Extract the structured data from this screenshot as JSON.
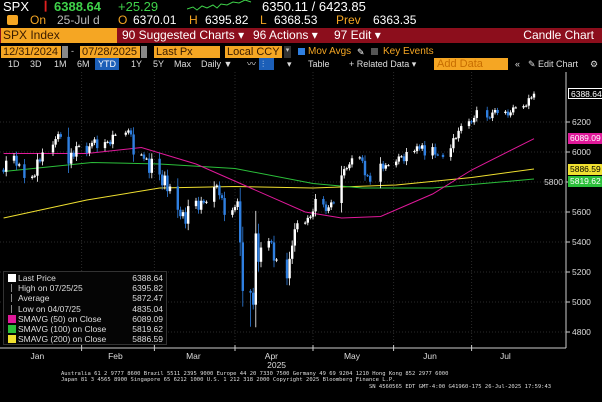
{
  "ticker": {
    "symbol": "SPX",
    "last": "6388.64",
    "change": "+25.29",
    "range": "6350.11 / 6423.85",
    "on_label": "On",
    "date": "25-Jul d",
    "o_label": "O",
    "open": "6370.01",
    "h_label": "H",
    "high": "6395.82",
    "l_label": "L",
    "low": "6368.53",
    "prev_label": "Prev",
    "prev": "6363.35"
  },
  "menubar": {
    "security": "SPX Index",
    "suggested": "90 Suggested Charts ▾",
    "actions": "96 Actions ▾",
    "edit": "97 Edit ▾",
    "chart_type": "Candle Chart"
  },
  "controls": {
    "start_date": "12/31/2024",
    "end_date": "07/28/2025",
    "field": "Last Px",
    "currency": "Local CCY",
    "mov_avgs": "Mov Avgs",
    "key_events": "Key Events",
    "mov_avgs_checked": true,
    "key_events_checked": false
  },
  "periods": {
    "items": [
      "1D",
      "3D",
      "1M",
      "6M",
      "YTD",
      "1Y",
      "5Y",
      "Max"
    ],
    "active": "YTD",
    "frequency": "Daily ▼",
    "table": "Table",
    "related": "+ Related Data ▾",
    "add_data_placeholder": "Add Data",
    "collapse": "«",
    "edit_chart": "Edit Chart"
  },
  "legend": [
    {
      "label": "Last Price",
      "value": "6388.64",
      "color": "#ffffff"
    },
    {
      "label": "High on 07/25/25",
      "value": "6395.82"
    },
    {
      "label": "Average",
      "value": "5872.47"
    },
    {
      "label": "Low on 04/07/25",
      "value": "4835.04"
    },
    {
      "label": "SMAVG (50)  on Close",
      "value": "6089.09",
      "color": "#e0199a"
    },
    {
      "label": "SMAVG (100)  on Close",
      "value": "5819.62",
      "color": "#2bbf3a"
    },
    {
      "label": "SMAVG (200)  on Close",
      "value": "5886.59",
      "color": "#f0e030"
    }
  ],
  "footer": {
    "line1": "Australia 61 2 9777 8600 Brazil 5511 2395 9000 Europe 44 20 7330 7500 Germany 49 69 9204 1210 Hong Kong 852 2977 6000",
    "line2": "Japan 81 3 4565 8900       Singapore 65 6212 1000       U.S. 1 212 318 2000        Copyright 2025 Bloomberg Finance L.P.",
    "line3": "SN 4560565 EDT  GMT-4:00 G41960-175 26-Jul-2025 17:59:43"
  },
  "chart_data": {
    "type": "candlestick",
    "xlabel": "2025",
    "x_ticks": [
      "Jan",
      "Feb",
      "Mar",
      "Apr",
      "May",
      "Jun",
      "Jul"
    ],
    "y_ticks": [
      4800,
      5000,
      5200,
      5400,
      5600,
      5800,
      6000,
      6200
    ],
    "ylim": [
      4700,
      6450
    ],
    "xlim": [
      "2024-12-31",
      "2025-07-28"
    ],
    "grid": true,
    "legend_placement": "bottom-left",
    "colors": {
      "up": "#ffffff",
      "down": "#2f7fe0",
      "sma50": "#e0199a",
      "sma100": "#2bbf3a",
      "sma200": "#f0e030"
    },
    "price_tags": [
      {
        "value": 6388.64,
        "label": "6388.64",
        "color": "#ffffff"
      },
      {
        "value": 6089.09,
        "label": "6089.09",
        "color": "#e0199a"
      },
      {
        "value": 5886.59,
        "label": "5886.59",
        "color": "#f0e030"
      },
      {
        "value": 5819.62,
        "label": "5819.62",
        "color": "#2bbf3a"
      }
    ],
    "low_point": {
      "date": "2025-04-07",
      "value": 4835.04
    },
    "closes": [
      [
        "2024-12-31",
        5882
      ],
      [
        "2025-01-02",
        5868
      ],
      [
        "2025-01-03",
        5942
      ],
      [
        "2025-01-06",
        5975
      ],
      [
        "2025-01-07",
        5909
      ],
      [
        "2025-01-08",
        5918
      ],
      [
        "2025-01-10",
        5827
      ],
      [
        "2025-01-13",
        5836
      ],
      [
        "2025-01-14",
        5842
      ],
      [
        "2025-01-15",
        5950
      ],
      [
        "2025-01-16",
        5937
      ],
      [
        "2025-01-17",
        5997
      ],
      [
        "2025-01-21",
        6049
      ],
      [
        "2025-01-22",
        6086
      ],
      [
        "2025-01-23",
        6119
      ],
      [
        "2025-01-24",
        6101
      ],
      [
        "2025-01-27",
        5922
      ],
      [
        "2025-01-28",
        5995
      ],
      [
        "2025-01-29",
        5969
      ],
      [
        "2025-01-30",
        6039
      ],
      [
        "2025-01-31",
        6041
      ],
      [
        "2025-02-03",
        5994
      ],
      [
        "2025-02-04",
        6038
      ],
      [
        "2025-02-05",
        6061
      ],
      [
        "2025-02-06",
        6084
      ],
      [
        "2025-02-07",
        6026
      ],
      [
        "2025-02-10",
        6066
      ],
      [
        "2025-02-11",
        6068
      ],
      [
        "2025-02-12",
        6052
      ],
      [
        "2025-02-13",
        6115
      ],
      [
        "2025-02-14",
        6115
      ],
      [
        "2025-02-18",
        6129
      ],
      [
        "2025-02-19",
        6144
      ],
      [
        "2025-02-20",
        6117
      ],
      [
        "2025-02-21",
        5983
      ],
      [
        "2025-02-24",
        5983
      ],
      [
        "2025-02-25",
        5955
      ],
      [
        "2025-02-26",
        5956
      ],
      [
        "2025-02-27",
        5861
      ],
      [
        "2025-02-28",
        5955
      ],
      [
        "2025-03-03",
        5850
      ],
      [
        "2025-03-04",
        5778
      ],
      [
        "2025-03-05",
        5843
      ],
      [
        "2025-03-06",
        5739
      ],
      [
        "2025-03-07",
        5770
      ],
      [
        "2025-03-10",
        5615
      ],
      [
        "2025-03-11",
        5572
      ],
      [
        "2025-03-12",
        5599
      ],
      [
        "2025-03-13",
        5522
      ],
      [
        "2025-03-14",
        5639
      ],
      [
        "2025-03-17",
        5675
      ],
      [
        "2025-03-18",
        5615
      ],
      [
        "2025-03-19",
        5675
      ],
      [
        "2025-03-20",
        5663
      ],
      [
        "2025-03-21",
        5668
      ],
      [
        "2025-03-24",
        5767
      ],
      [
        "2025-03-25",
        5777
      ],
      [
        "2025-03-26",
        5712
      ],
      [
        "2025-03-27",
        5693
      ],
      [
        "2025-03-28",
        5581
      ],
      [
        "2025-03-31",
        5612
      ],
      [
        "2025-04-01",
        5633
      ],
      [
        "2025-04-02",
        5671
      ],
      [
        "2025-04-03",
        5397
      ],
      [
        "2025-04-04",
        5074
      ],
      [
        "2025-04-07",
        5062
      ],
      [
        "2025-04-08",
        4982
      ],
      [
        "2025-04-09",
        5457
      ],
      [
        "2025-04-10",
        5268
      ],
      [
        "2025-04-11",
        5363
      ],
      [
        "2025-04-14",
        5406
      ],
      [
        "2025-04-15",
        5397
      ],
      [
        "2025-04-16",
        5276
      ],
      [
        "2025-04-17",
        5283
      ],
      [
        "2025-04-21",
        5158
      ],
      [
        "2025-04-22",
        5288
      ],
      [
        "2025-04-23",
        5376
      ],
      [
        "2025-04-24",
        5485
      ],
      [
        "2025-04-25",
        5525
      ],
      [
        "2025-04-28",
        5529
      ],
      [
        "2025-04-29",
        5561
      ],
      [
        "2025-04-30",
        5569
      ],
      [
        "2025-05-01",
        5604
      ],
      [
        "2025-05-02",
        5687
      ],
      [
        "2025-05-05",
        5650
      ],
      [
        "2025-05-06",
        5607
      ],
      [
        "2025-05-07",
        5631
      ],
      [
        "2025-05-08",
        5664
      ],
      [
        "2025-05-09",
        5660
      ],
      [
        "2025-05-12",
        5844
      ],
      [
        "2025-05-13",
        5886
      ],
      [
        "2025-05-14",
        5892
      ],
      [
        "2025-05-15",
        5917
      ],
      [
        "2025-05-16",
        5958
      ],
      [
        "2025-05-19",
        5964
      ],
      [
        "2025-05-20",
        5941
      ],
      [
        "2025-05-21",
        5845
      ],
      [
        "2025-05-22",
        5842
      ],
      [
        "2025-05-23",
        5802
      ],
      [
        "2025-05-27",
        5922
      ],
      [
        "2025-05-28",
        5889
      ],
      [
        "2025-05-29",
        5912
      ],
      [
        "2025-05-30",
        5912
      ],
      [
        "2025-06-02",
        5936
      ],
      [
        "2025-06-03",
        5970
      ],
      [
        "2025-06-04",
        5971
      ],
      [
        "2025-06-05",
        5939
      ],
      [
        "2025-06-06",
        6000
      ],
      [
        "2025-06-09",
        6006
      ],
      [
        "2025-06-10",
        6038
      ],
      [
        "2025-06-11",
        6022
      ],
      [
        "2025-06-12",
        6045
      ],
      [
        "2025-06-13",
        5977
      ],
      [
        "2025-06-16",
        6033
      ],
      [
        "2025-06-17",
        5983
      ],
      [
        "2025-06-18",
        5981
      ],
      [
        "2025-06-20",
        5967
      ],
      [
        "2025-06-23",
        6025
      ],
      [
        "2025-06-24",
        6092
      ],
      [
        "2025-06-25",
        6092
      ],
      [
        "2025-06-26",
        6141
      ],
      [
        "2025-06-27",
        6173
      ],
      [
        "2025-06-30",
        6205
      ],
      [
        "2025-07-01",
        6198
      ],
      [
        "2025-07-02",
        6227
      ],
      [
        "2025-07-03",
        6279
      ],
      [
        "2025-07-07",
        6230
      ],
      [
        "2025-07-08",
        6226
      ],
      [
        "2025-07-09",
        6263
      ],
      [
        "2025-07-10",
        6280
      ],
      [
        "2025-07-11",
        6260
      ],
      [
        "2025-07-14",
        6269
      ],
      [
        "2025-07-15",
        6244
      ],
      [
        "2025-07-16",
        6264
      ],
      [
        "2025-07-17",
        6297
      ],
      [
        "2025-07-18",
        6297
      ],
      [
        "2025-07-21",
        6306
      ],
      [
        "2025-07-22",
        6309
      ],
      [
        "2025-07-23",
        6359
      ],
      [
        "2025-07-24",
        6363
      ],
      [
        "2025-07-25",
        6388.64
      ]
    ],
    "sma50": [
      [
        "2025-01-02",
        5990
      ],
      [
        "2025-02-03",
        5990
      ],
      [
        "2025-02-24",
        6030
      ],
      [
        "2025-03-17",
        5920
      ],
      [
        "2025-04-07",
        5760
      ],
      [
        "2025-04-28",
        5600
      ],
      [
        "2025-05-12",
        5560
      ],
      [
        "2025-05-27",
        5570
      ],
      [
        "2025-06-16",
        5720
      ],
      [
        "2025-07-01",
        5880
      ],
      [
        "2025-07-25",
        6089.09
      ]
    ],
    "sma100": [
      [
        "2025-01-02",
        5870
      ],
      [
        "2025-02-05",
        5930
      ],
      [
        "2025-03-03",
        5920
      ],
      [
        "2025-04-01",
        5890
      ],
      [
        "2025-05-01",
        5790
      ],
      [
        "2025-05-20",
        5760
      ],
      [
        "2025-06-16",
        5760
      ],
      [
        "2025-07-25",
        5819.62
      ]
    ],
    "sma200": [
      [
        "2025-01-02",
        5560
      ],
      [
        "2025-02-03",
        5680
      ],
      [
        "2025-03-03",
        5760
      ],
      [
        "2025-04-01",
        5770
      ],
      [
        "2025-05-01",
        5760
      ],
      [
        "2025-06-02",
        5780
      ],
      [
        "2025-07-01",
        5830
      ],
      [
        "2025-07-25",
        5886.59
      ]
    ]
  }
}
